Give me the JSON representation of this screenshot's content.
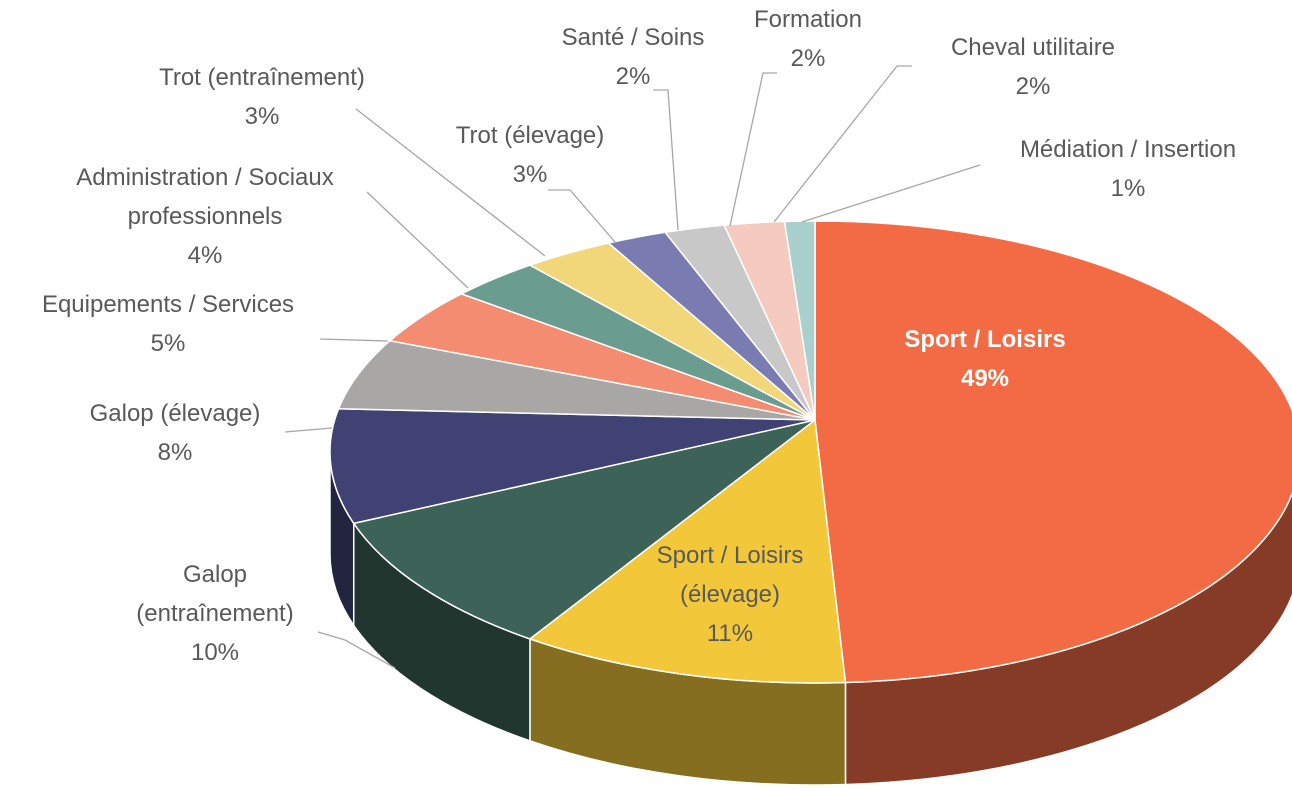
{
  "chart_data": {
    "type": "pie3d",
    "categories": [
      "Sport / Loisirs",
      "Sport / Loisirs (élevage)",
      "Galop (entraînement)",
      "Galop (élevage)",
      "Equipements / Services",
      "Administration / Sociaux professionnels",
      "Trot (entraînement)",
      "Trot (élevage)",
      "Santé / Soins",
      "Formation",
      "Cheval utilitaire",
      "Médiation / Insertion"
    ],
    "values": [
      49,
      11,
      10,
      8,
      5,
      4,
      3,
      3,
      2,
      2,
      2,
      1
    ],
    "value_labels": [
      "49%",
      "11%",
      "10%",
      "8%",
      "5%",
      "4%",
      "3%",
      "3%",
      "2%",
      "2%",
      "2%",
      "1%"
    ],
    "colors": [
      "#f26b45",
      "#f2c83a",
      "#3d6358",
      "#3f4273",
      "#a9a6a6",
      "#f48c72",
      "#6a9d8f",
      "#f2d77a",
      "#7a7bb0",
      "#c8c8c8",
      "#f5cac0",
      "#a9d0cc"
    ]
  }
}
